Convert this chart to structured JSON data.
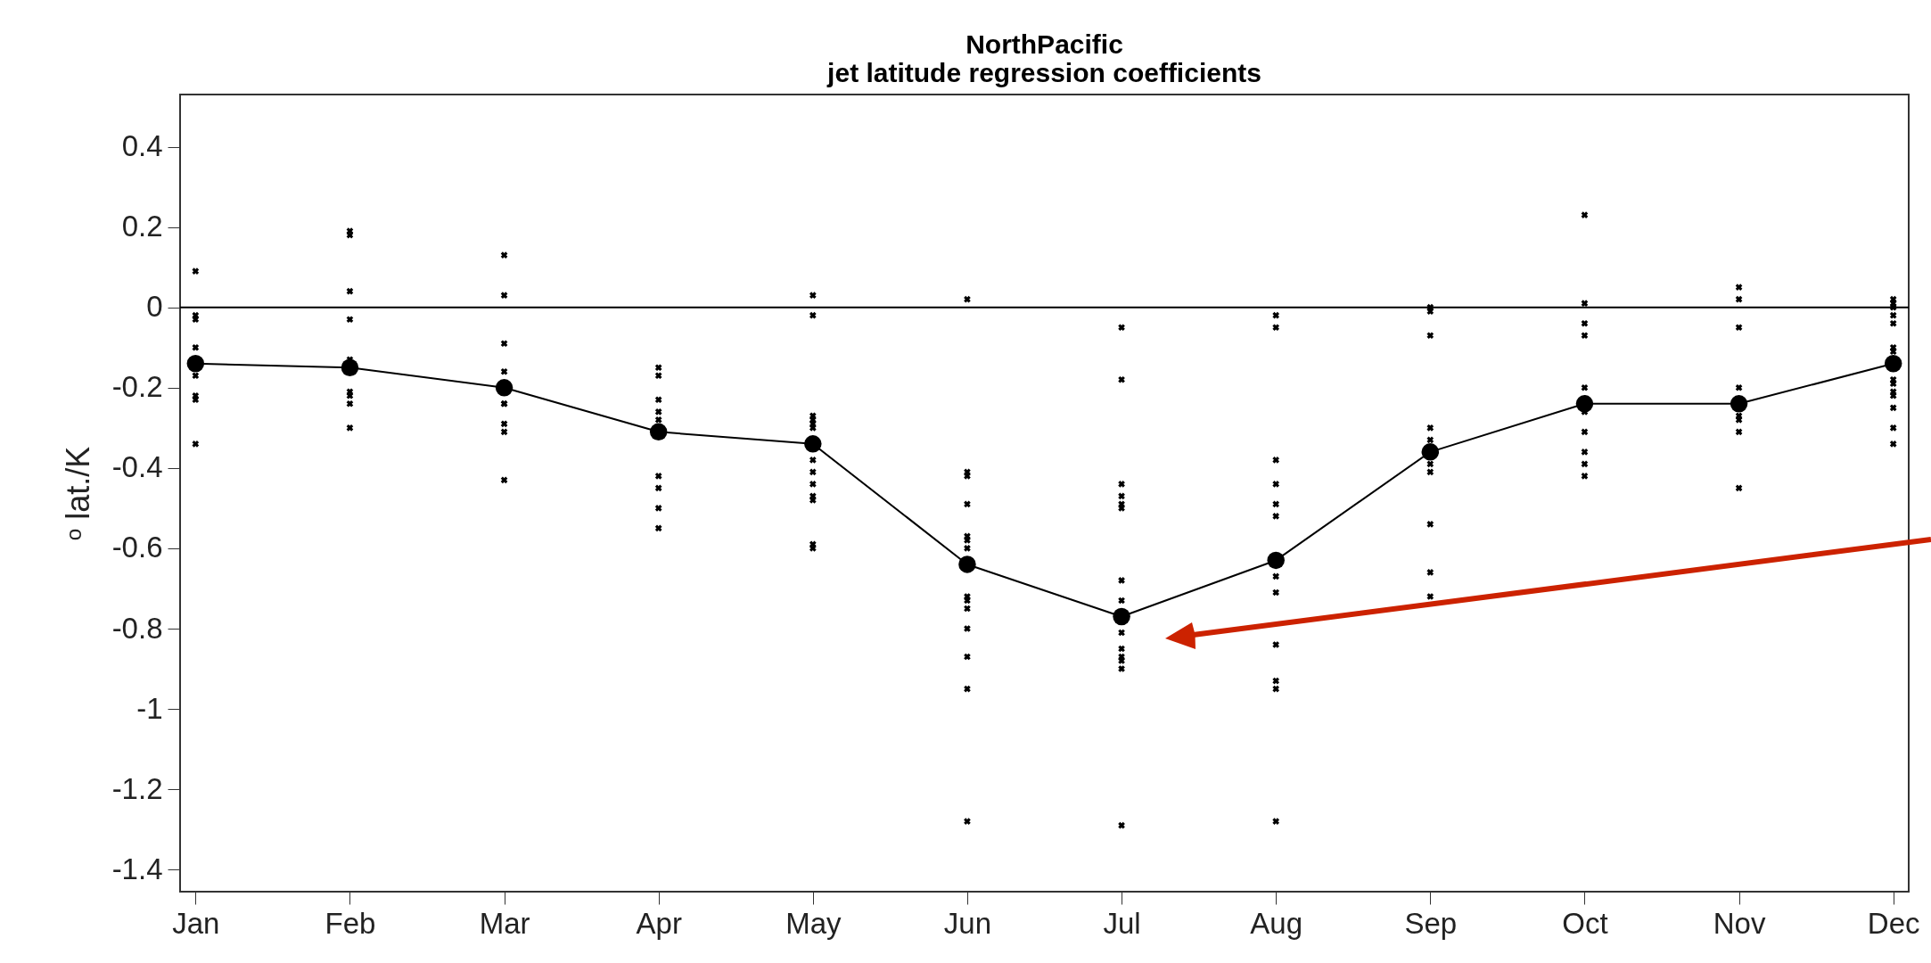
{
  "chart_data": {
    "type": "line",
    "title": "NorthPacific",
    "subtitle": "jet latitude regression coefficients",
    "ylabel": "ᵒ lat./K",
    "categories": [
      "Jan",
      "Feb",
      "Mar",
      "Apr",
      "May",
      "Jun",
      "Jul",
      "Aug",
      "Sep",
      "Oct",
      "Nov",
      "Dec"
    ],
    "ylim": [
      -1.455,
      0.53
    ],
    "yticks": [
      -1.4,
      -1.2,
      -1,
      -0.8,
      -0.6,
      -0.4,
      -0.2,
      0,
      0.2,
      0.4
    ],
    "grid": false,
    "ref_lines": [
      {
        "axis": "y",
        "value": 0,
        "color": "#000000"
      }
    ],
    "series": [
      {
        "color": "#000000",
        "marker": "circle",
        "values": [
          -0.14,
          -0.15,
          -0.2,
          -0.31,
          -0.34,
          -0.64,
          -0.77,
          -0.63,
          -0.36,
          -0.24,
          -0.24,
          -0.14
        ]
      },
      {
        "type": "scatter",
        "color": "#000000",
        "marker": "cross",
        "x": [
          "Jan",
          "Jan",
          "Jan",
          "Jan",
          "Jan",
          "Jan",
          "Jan",
          "Jan",
          "Feb",
          "Feb",
          "Feb",
          "Feb",
          "Feb",
          "Feb",
          "Feb",
          "Feb",
          "Feb",
          "Mar",
          "Mar",
          "Mar",
          "Mar",
          "Mar",
          "Mar",
          "Mar",
          "Mar",
          "Mar",
          "Apr",
          "Apr",
          "Apr",
          "Apr",
          "Apr",
          "Apr",
          "Apr",
          "Apr",
          "Apr",
          "May",
          "May",
          "May",
          "May",
          "May",
          "May",
          "May",
          "May",
          "May",
          "May",
          "May",
          "May",
          "May",
          "Jun",
          "Jun",
          "Jun",
          "Jun",
          "Jun",
          "Jun",
          "Jun",
          "Jun",
          "Jun",
          "Jun",
          "Jun",
          "Jun",
          "Jun",
          "Jun",
          "Jul",
          "Jul",
          "Jul",
          "Jul",
          "Jul",
          "Jul",
          "Jul",
          "Jul",
          "Jul",
          "Jul",
          "Jul",
          "Jul",
          "Jul",
          "Jul",
          "Aug",
          "Aug",
          "Aug",
          "Aug",
          "Aug",
          "Aug",
          "Aug",
          "Aug",
          "Aug",
          "Aug",
          "Aug",
          "Aug",
          "Sep",
          "Sep",
          "Sep",
          "Sep",
          "Sep",
          "Sep",
          "Sep",
          "Sep",
          "Sep",
          "Sep",
          "Oct",
          "Oct",
          "Oct",
          "Oct",
          "Oct",
          "Oct",
          "Oct",
          "Oct",
          "Oct",
          "Oct",
          "Nov",
          "Nov",
          "Nov",
          "Nov",
          "Nov",
          "Nov",
          "Nov",
          "Nov",
          "Dec",
          "Dec",
          "Dec",
          "Dec",
          "Dec",
          "Dec",
          "Dec",
          "Dec",
          "Dec",
          "Dec",
          "Dec",
          "Dec",
          "Dec",
          "Dec"
        ],
        "values": [
          0.09,
          -0.02,
          -0.03,
          -0.1,
          -0.17,
          -0.22,
          -0.23,
          -0.34,
          0.19,
          0.18,
          0.04,
          -0.03,
          -0.13,
          -0.21,
          -0.22,
          -0.24,
          -0.3,
          0.13,
          0.03,
          -0.09,
          -0.16,
          -0.24,
          -0.24,
          -0.29,
          -0.31,
          -0.43,
          -0.15,
          -0.17,
          -0.23,
          -0.26,
          -0.28,
          -0.42,
          -0.45,
          -0.5,
          -0.55,
          0.03,
          -0.02,
          -0.27,
          -0.28,
          -0.29,
          -0.3,
          -0.38,
          -0.41,
          -0.44,
          -0.47,
          -0.48,
          -0.59,
          -0.6,
          0.02,
          -0.41,
          -0.42,
          -0.49,
          -0.57,
          -0.58,
          -0.6,
          -0.72,
          -0.73,
          -0.75,
          -0.8,
          -0.87,
          -0.95,
          -1.28,
          -0.05,
          -0.18,
          -0.44,
          -0.47,
          -0.49,
          -0.5,
          -0.68,
          -0.73,
          -0.81,
          -0.85,
          -0.87,
          -0.88,
          -0.9,
          -1.29,
          -0.02,
          -0.05,
          -0.38,
          -0.44,
          -0.49,
          -0.52,
          -0.67,
          -0.71,
          -0.84,
          -0.93,
          -0.95,
          -1.28,
          0,
          -0.01,
          -0.07,
          -0.3,
          -0.33,
          -0.39,
          -0.41,
          -0.54,
          -0.66,
          -0.72,
          0.23,
          0.01,
          -0.04,
          -0.07,
          -0.2,
          -0.26,
          -0.31,
          -0.36,
          -0.39,
          -0.42,
          0.05,
          0.02,
          -0.05,
          -0.2,
          -0.27,
          -0.28,
          -0.31,
          -0.45,
          0.02,
          0.01,
          0,
          -0.02,
          -0.04,
          -0.1,
          -0.11,
          -0.18,
          -0.19,
          -0.21,
          -0.22,
          -0.25,
          -0.3,
          -0.34
        ]
      }
    ]
  }
}
